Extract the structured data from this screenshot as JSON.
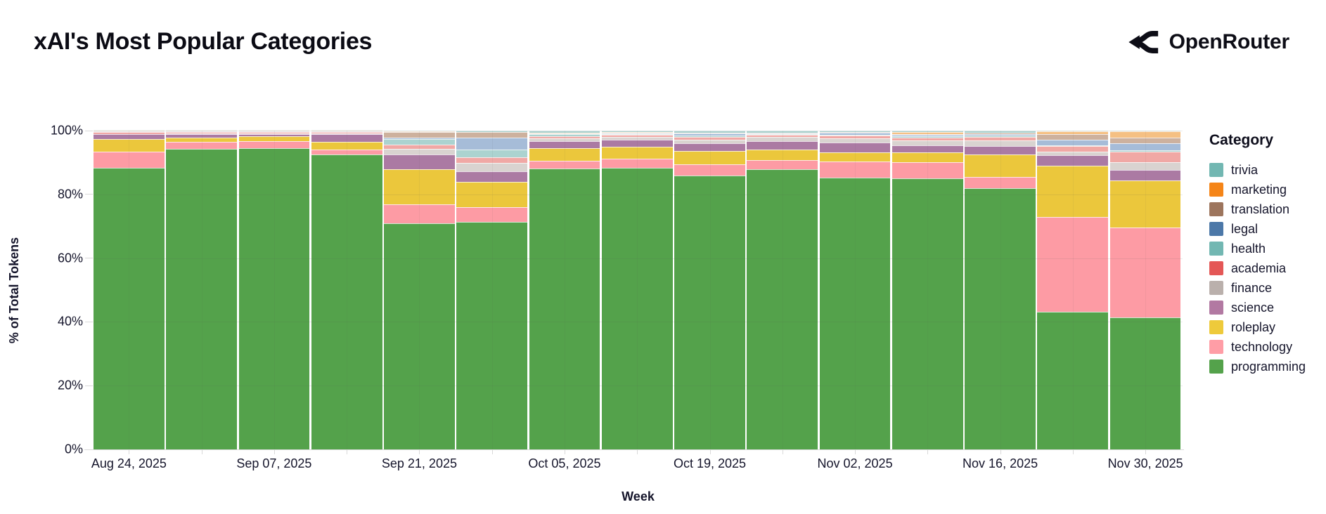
{
  "header": {
    "title": "xAI's Most Popular Categories",
    "brand": "OpenRouter"
  },
  "chart_data": {
    "type": "bar",
    "stacked": true,
    "normalized_percent": true,
    "title": "xAI's Most Popular Categories",
    "xlabel": "Week",
    "ylabel": "% of Total Tokens",
    "ylim": [
      0,
      100
    ],
    "y_tick_labels": [
      "0%",
      "20%",
      "40%",
      "60%",
      "80%",
      "100%"
    ],
    "grid": true,
    "legend_title": "Category",
    "legend_position": "right",
    "categories": [
      {
        "name": "trivia",
        "legend_color": "#72b7b2",
        "bar_color": "#a8d1ce",
        "textured": true
      },
      {
        "name": "marketing",
        "legend_color": "#f58518",
        "bar_color": "#f5c083",
        "textured": false
      },
      {
        "name": "translation",
        "legend_color": "#9d755d",
        "bar_color": "#cdb19e",
        "textured": false
      },
      {
        "name": "legal",
        "legend_color": "#4c78a8",
        "bar_color": "#a6bcd8",
        "textured": false
      },
      {
        "name": "health",
        "legend_color": "#72b7b2",
        "bar_color": "#abd3d0",
        "textured": false
      },
      {
        "name": "academia",
        "legend_color": "#e45756",
        "bar_color": "#f0a8a5",
        "textured": false
      },
      {
        "name": "finance",
        "legend_color": "#bab0ac",
        "bar_color": "#d9d3d0",
        "textured": true
      },
      {
        "name": "science",
        "legend_color": "#b279a2",
        "bar_color": "#ab7aa3",
        "textured": false
      },
      {
        "name": "roleplay",
        "legend_color": "#eeca3b",
        "bar_color": "#ebc73c",
        "textured": false
      },
      {
        "name": "technology",
        "legend_color": "#ff9da6",
        "bar_color": "#fd9ba4",
        "textured": false
      },
      {
        "name": "programming",
        "legend_color": "#54a24b",
        "bar_color": "#54a24b",
        "textured": false
      }
    ],
    "stack_order_bottom_to_top": [
      "programming",
      "technology",
      "roleplay",
      "science",
      "finance",
      "academia",
      "health",
      "legal",
      "translation",
      "marketing",
      "trivia"
    ],
    "weeks": [
      {
        "label": "Aug 24, 2025",
        "values": {
          "programming": 88.3,
          "technology": 5.2,
          "roleplay": 3.8,
          "science": 1.5,
          "finance": 0.2,
          "academia": 0.5,
          "health": 0.1,
          "legal": 0.1,
          "translation": 0.1,
          "marketing": 0.1,
          "trivia": 0.1
        }
      },
      {
        "label": "",
        "values": {
          "programming": 94.2,
          "technology": 2.2,
          "roleplay": 1.3,
          "science": 1.2,
          "finance": 0.3,
          "academia": 0.3,
          "health": 0.1,
          "legal": 0.1,
          "translation": 0.1,
          "marketing": 0.1,
          "trivia": 0.1
        }
      },
      {
        "label": "Sep 07, 2025",
        "values": {
          "programming": 94.6,
          "technology": 2.2,
          "roleplay": 1.5,
          "science": 0.7,
          "finance": 0.2,
          "academia": 0.3,
          "health": 0.1,
          "legal": 0.1,
          "translation": 0.1,
          "marketing": 0.1,
          "trivia": 0.1
        }
      },
      {
        "label": "",
        "values": {
          "programming": 92.6,
          "technology": 1.6,
          "roleplay": 2.4,
          "science": 2.4,
          "finance": 0.3,
          "academia": 0.3,
          "health": 0.1,
          "legal": 0.1,
          "translation": 0.1,
          "marketing": 0.1,
          "trivia": 0.1
        }
      },
      {
        "label": "Sep 21, 2025",
        "values": {
          "programming": 71.0,
          "technology": 6.0,
          "roleplay": 11.0,
          "science": 4.6,
          "finance": 1.8,
          "academia": 1.3,
          "health": 1.8,
          "legal": 0.4,
          "translation": 1.9,
          "marketing": 0.1,
          "trivia": 0.3
        }
      },
      {
        "label": "",
        "values": {
          "programming": 71.5,
          "technology": 4.6,
          "roleplay": 8.0,
          "science": 3.3,
          "finance": 2.6,
          "academia": 1.9,
          "health": 2.4,
          "legal": 3.6,
          "translation": 1.8,
          "marketing": 0.1,
          "trivia": 0.4
        }
      },
      {
        "label": "Oct 05, 2025",
        "values": {
          "programming": 88.0,
          "technology": 2.6,
          "roleplay": 4.0,
          "science": 2.0,
          "finance": 0.9,
          "academia": 0.8,
          "health": 0.5,
          "legal": 0.2,
          "translation": 0.2,
          "marketing": 0.1,
          "trivia": 0.7
        }
      },
      {
        "label": "",
        "values": {
          "programming": 88.3,
          "technology": 2.9,
          "roleplay": 3.8,
          "science": 2.2,
          "finance": 0.8,
          "academia": 0.7,
          "health": 0.3,
          "legal": 0.2,
          "translation": 0.2,
          "marketing": 0.1,
          "trivia": 0.5
        }
      },
      {
        "label": "Oct 19, 2025",
        "values": {
          "programming": 86.0,
          "technology": 3.5,
          "roleplay": 4.1,
          "science": 2.5,
          "finance": 1.0,
          "academia": 0.9,
          "health": 0.4,
          "legal": 0.7,
          "translation": 0.2,
          "marketing": 0.1,
          "trivia": 0.6
        }
      },
      {
        "label": "",
        "values": {
          "programming": 87.8,
          "technology": 2.9,
          "roleplay": 3.4,
          "science": 2.6,
          "finance": 1.3,
          "academia": 0.6,
          "health": 0.3,
          "legal": 0.2,
          "translation": 0.2,
          "marketing": 0.1,
          "trivia": 0.6
        }
      },
      {
        "label": "Nov 02, 2025",
        "values": {
          "programming": 85.3,
          "technology": 5.1,
          "roleplay": 2.7,
          "science": 3.1,
          "finance": 1.4,
          "academia": 0.8,
          "health": 0.3,
          "legal": 0.6,
          "translation": 0.2,
          "marketing": 0.1,
          "trivia": 0.4
        }
      },
      {
        "label": "",
        "values": {
          "programming": 85.0,
          "technology": 5.2,
          "roleplay": 2.9,
          "science": 2.3,
          "finance": 1.5,
          "academia": 1.0,
          "health": 0.4,
          "legal": 0.3,
          "translation": 0.3,
          "marketing": 0.7,
          "trivia": 0.4
        }
      },
      {
        "label": "Nov 16, 2025",
        "values": {
          "programming": 81.9,
          "technology": 3.5,
          "roleplay": 7.1,
          "science": 2.7,
          "finance": 1.7,
          "academia": 1.1,
          "health": 0.4,
          "legal": 0.5,
          "translation": 0.4,
          "marketing": 0.1,
          "trivia": 0.6
        }
      },
      {
        "label": "",
        "values": {
          "programming": 43.2,
          "technology": 29.7,
          "roleplay": 16.2,
          "science": 3.3,
          "finance": 1.1,
          "academia": 1.6,
          "health": 0.3,
          "legal": 1.7,
          "translation": 1.8,
          "marketing": 0.8,
          "trivia": 0.3
        }
      },
      {
        "label": "Nov 30, 2025",
        "values": {
          "programming": 41.5,
          "technology": 28.2,
          "roleplay": 14.6,
          "science": 3.3,
          "finance": 2.5,
          "academia": 3.4,
          "health": 0.4,
          "legal": 2.2,
          "translation": 1.6,
          "marketing": 2.0,
          "trivia": 0.3
        }
      }
    ]
  }
}
